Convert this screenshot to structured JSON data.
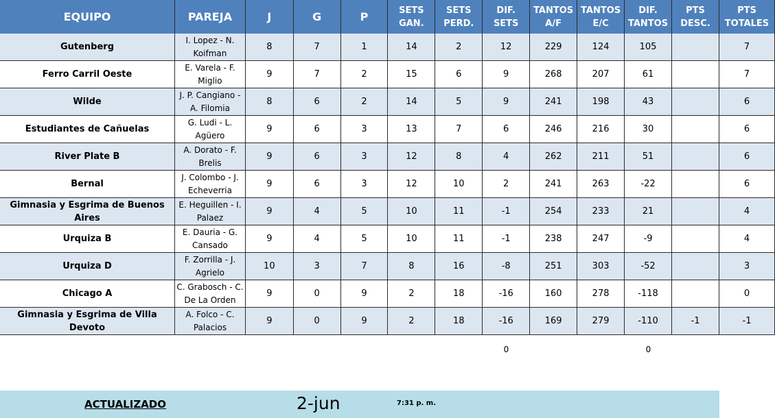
{
  "headers": [
    "EQUIPO",
    "PAREJA",
    "J",
    "G",
    "P",
    "SETS GAN.",
    "SETS PERD.",
    "DIF. SETS",
    "TANTOS A/F",
    "TANTOS E/C",
    "DIF. TANTOS",
    "PTS DESC.",
    "PTS TOTALES"
  ],
  "rows": [
    [
      "Gutenberg",
      "I. Lopez - N. Koifman",
      "8",
      "7",
      "1",
      "14",
      "2",
      "12",
      "229",
      "124",
      "105",
      "",
      "7"
    ],
    [
      "Ferro Carril Oeste",
      "E. Varela - F. Miglio",
      "9",
      "7",
      "2",
      "15",
      "6",
      "9",
      "268",
      "207",
      "61",
      "",
      "7"
    ],
    [
      "Wilde",
      "J. P. Cangiano - A. Filomia",
      "8",
      "6",
      "2",
      "14",
      "5",
      "9",
      "241",
      "198",
      "43",
      "",
      "6"
    ],
    [
      "Estudiantes de Cañuelas",
      "G. Ludi - L. Agüero",
      "9",
      "6",
      "3",
      "13",
      "7",
      "6",
      "246",
      "216",
      "30",
      "",
      "6"
    ],
    [
      "River Plate B",
      "A. Dorato - F. Brelis",
      "9",
      "6",
      "3",
      "12",
      "8",
      "4",
      "262",
      "211",
      "51",
      "",
      "6"
    ],
    [
      "Bernal",
      "J. Colombo - J. Echeverria",
      "9",
      "6",
      "3",
      "12",
      "10",
      "2",
      "241",
      "263",
      "-22",
      "",
      "6"
    ],
    [
      "Gimnasia y Esgrima de Buenos Aires",
      "E. Heguillen - I. Palaez",
      "9",
      "4",
      "5",
      "10",
      "11",
      "-1",
      "254",
      "233",
      "21",
      "",
      "4"
    ],
    [
      "Urquiza B",
      "E. Dauria - G. Cansado",
      "9",
      "4",
      "5",
      "10",
      "11",
      "-1",
      "238",
      "247",
      "-9",
      "",
      "4"
    ],
    [
      "Urquiza D",
      "F. Zorrilla - J. Agrielo",
      "10",
      "3",
      "7",
      "8",
      "16",
      "-8",
      "251",
      "303",
      "-52",
      "",
      "3"
    ],
    [
      "Chicago A",
      "C. Grabosch - C. De La Orden",
      "9",
      "0",
      "9",
      "2",
      "18",
      "-16",
      "160",
      "278",
      "-118",
      "",
      "0"
    ],
    [
      "Gimnasia y Esgrima de Villa Devoto",
      "A. Folco - C. Palacios",
      "9",
      "0",
      "9",
      "2",
      "18",
      "-16",
      "169",
      "279",
      "-110",
      "-1",
      "-1"
    ]
  ],
  "totals": {
    "dif_sets": "0",
    "dif_tantos": "0"
  },
  "footer": {
    "label": "ACTUALIZADO",
    "date": "2-jun",
    "time": "7:31 p. m."
  },
  "colors": {
    "header": "#4f81bd",
    "row_alt": "#dce6f1",
    "footer": "#b7dde8"
  }
}
